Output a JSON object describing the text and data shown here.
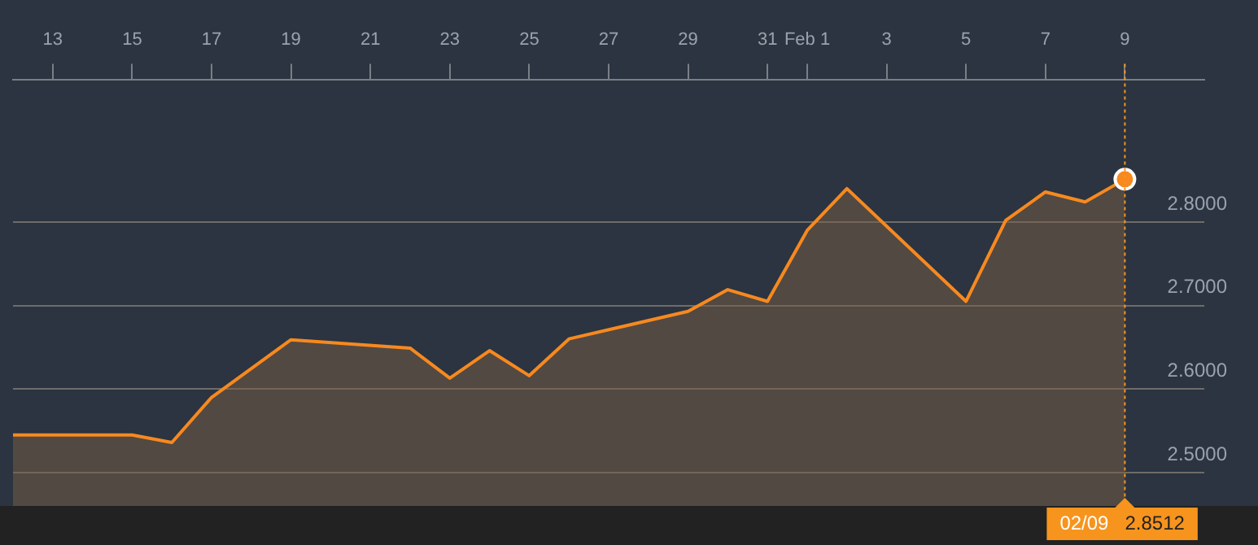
{
  "chart_data": {
    "type": "area",
    "x": [
      "--01-12",
      "--01-15",
      "--01-16",
      "--01-17",
      "--01-19",
      "--01-22",
      "--01-23",
      "--01-24",
      "--01-25",
      "--01-26",
      "--01-29",
      "--01-30",
      "--01-31",
      "--02-01",
      "--02-02",
      "--02-05",
      "--02-06",
      "--02-07",
      "--02-08",
      "--02-09"
    ],
    "series": [
      {
        "color": "#f7891f",
        "values": [
          2.545,
          2.545,
          2.536,
          2.59,
          2.659,
          2.649,
          2.613,
          2.646,
          2.616,
          2.66,
          2.693,
          2.719,
          2.705,
          2.79,
          2.84,
          2.705,
          2.802,
          2.836,
          2.824,
          2.8512
        ],
        "marker": "none"
      }
    ],
    "xlim": [
      "--01-12",
      "--02-11"
    ],
    "xticks": [
      {
        "value": "--01-13",
        "label": "13"
      },
      {
        "value": "--01-15",
        "label": "15"
      },
      {
        "value": "--01-17",
        "label": "17"
      },
      {
        "value": "--01-19",
        "label": "19"
      },
      {
        "value": "--01-21",
        "label": "21"
      },
      {
        "value": "--01-23",
        "label": "23"
      },
      {
        "value": "--01-25",
        "label": "25"
      },
      {
        "value": "--01-27",
        "label": "27"
      },
      {
        "value": "--01-29",
        "label": "29"
      },
      {
        "value": "--01-31",
        "label": "31"
      },
      {
        "value": "--02-01",
        "label": "Feb 1"
      },
      {
        "value": "--02-03",
        "label": "3"
      },
      {
        "value": "--02-05",
        "label": "5"
      },
      {
        "value": "--02-07",
        "label": "7"
      },
      {
        "value": "--02-09",
        "label": "9"
      }
    ],
    "ylim": [
      2.46,
      2.97
    ],
    "yticks": [
      {
        "value": 2.5,
        "label": "2.5000"
      },
      {
        "value": 2.6,
        "label": "2.6000"
      },
      {
        "value": 2.7,
        "label": "2.7000"
      },
      {
        "value": 2.8,
        "label": "2.8000"
      }
    ],
    "grid": "y",
    "ref_lines": [
      {
        "axis": "x",
        "value": "--02-09",
        "label": "02/09",
        "color": "#f7941d",
        "line_style": "dotted"
      }
    ],
    "annotations": [
      "2.8512"
    ]
  }
}
